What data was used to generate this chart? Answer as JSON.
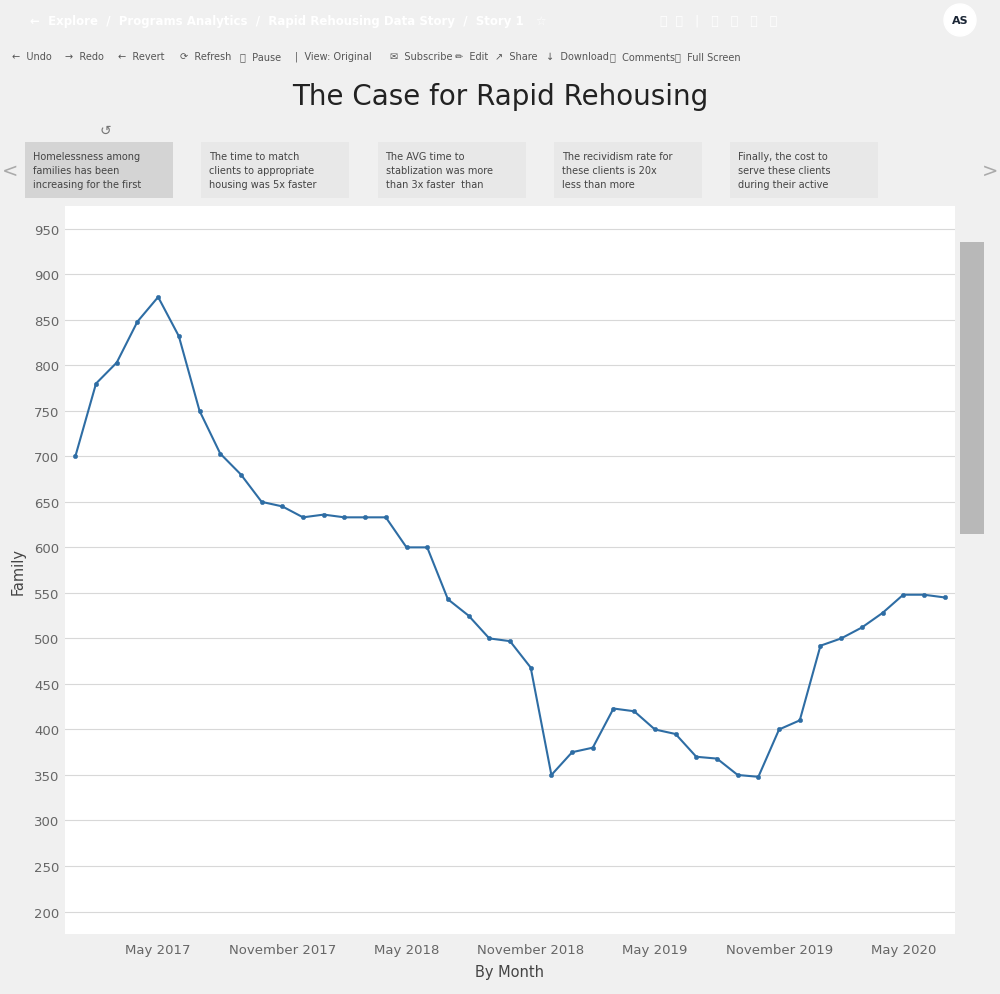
{
  "title": "The Case for Rapid Rehousing",
  "xlabel": "By Month",
  "ylabel": "Family",
  "bg_color": "#ffffff",
  "outer_bg": "#f0f0f0",
  "line_color": "#2e6da4",
  "marker_color": "#2e6da4",
  "ylim": [
    175,
    975
  ],
  "yticks": [
    200,
    250,
    300,
    350,
    400,
    450,
    500,
    550,
    600,
    650,
    700,
    750,
    800,
    850,
    900,
    950
  ],
  "nav_bar_color": "#1a2535",
  "toolbar_color": "#f8f8f8",
  "story_cards": [
    "Homelessness among\nfamilies has been\nincreasing for the first",
    "The time to match\nclients to appropriate\nhousing was 5x faster",
    "The AVG time to\nstablization was more\nthan 3x faster  than",
    "The recividism rate for\nthese clients is 20x\nless than more",
    "Finally, the cost to\nserve these clients\nduring their active"
  ],
  "values": [
    700,
    780,
    803,
    848,
    875,
    832,
    750,
    703,
    680,
    650,
    645,
    633,
    636,
    633,
    633,
    633,
    600,
    600,
    543,
    525,
    500,
    497,
    468,
    350,
    375,
    380,
    423,
    420,
    400,
    395,
    370,
    368,
    350,
    348,
    400,
    410,
    492,
    500,
    512,
    528,
    548,
    548,
    545
  ],
  "xtick_positions": [
    4,
    10,
    16,
    22,
    28,
    34,
    40
  ],
  "xtick_labels": [
    "May 2017",
    "November 2017",
    "May 2018",
    "November 2018",
    "May 2019",
    "November 2019",
    "May 2020"
  ],
  "card_colors": [
    "#d4d4d4",
    "#e8e8e8",
    "#e8e8e8",
    "#e8e8e8",
    "#e8e8e8"
  ],
  "scrollbar_bg": "#d0d0d0",
  "scrollbar_thumb": "#b8b8b8"
}
